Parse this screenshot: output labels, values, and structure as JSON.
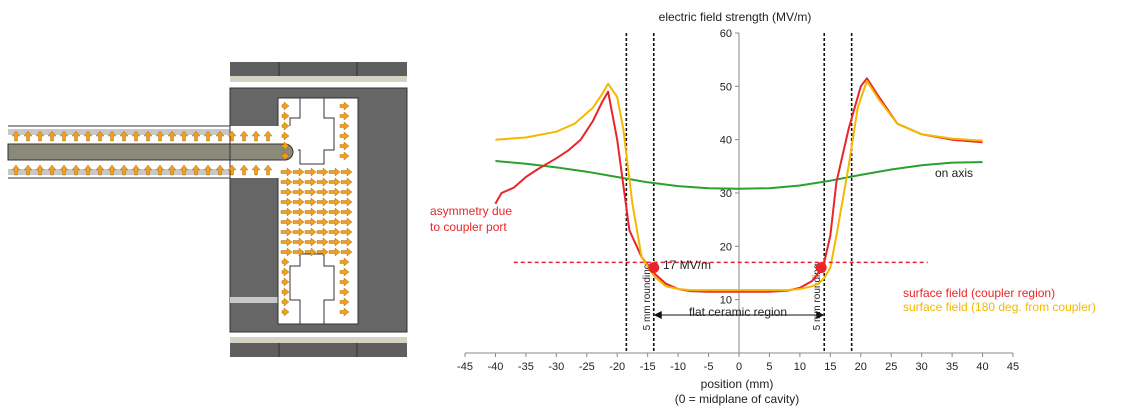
{
  "colors": {
    "red": "#e8262a",
    "orange": "#f5b800",
    "green": "#2ca02c",
    "structure_dark": "#606060",
    "structure_light": "#c8c8c8",
    "arrow_fill": "#f0a020"
  },
  "left_panel": {
    "description_icon": "coupler-cavity-field-arrows"
  },
  "chart_data": {
    "type": "line",
    "title": "electric field strength (MV/m)",
    "xlabel": "position (mm)",
    "xlabel2": "(0 = midplane of cavity)",
    "ylabel": "",
    "xlim": [
      -45,
      45
    ],
    "ylim": [
      0,
      60
    ],
    "xticks": [
      -45,
      -40,
      -35,
      -30,
      -25,
      -20,
      -15,
      -10,
      -5,
      0,
      5,
      10,
      15,
      20,
      25,
      30,
      35,
      40,
      45
    ],
    "yticks": [
      0,
      10,
      20,
      30,
      40,
      50,
      60
    ],
    "series": [
      {
        "name": "on axis",
        "color": "#2ca02c",
        "x": [
          -40,
          -35,
          -30,
          -25,
          -20,
          -15,
          -10,
          -5,
          0,
          5,
          10,
          15,
          20,
          25,
          30,
          35,
          40
        ],
        "y": [
          36.0,
          35.5,
          34.8,
          34.0,
          33.0,
          32.0,
          31.3,
          30.9,
          30.8,
          30.9,
          31.4,
          32.3,
          33.4,
          34.4,
          35.2,
          35.7,
          35.8
        ]
      },
      {
        "name": "surface field (coupler region)",
        "color": "#e8262a",
        "x": [
          -40,
          -39,
          -37,
          -35,
          -33,
          -30,
          -28,
          -26,
          -24,
          -22.5,
          -21.5,
          -20,
          -18,
          -16,
          -14,
          -13,
          -12,
          -10,
          -8,
          -5,
          0,
          5,
          8,
          10,
          12,
          13,
          14,
          15,
          16,
          18,
          20,
          21,
          23,
          26,
          30,
          35,
          40
        ],
        "y": [
          28.0,
          30.0,
          31.0,
          33.0,
          34.5,
          36.5,
          38.0,
          40.0,
          43.5,
          47.0,
          49.0,
          40.0,
          23.0,
          18.0,
          15.0,
          14.0,
          13.0,
          12.0,
          11.6,
          11.5,
          11.5,
          11.5,
          11.7,
          12.2,
          13.5,
          15.0,
          17.0,
          22.0,
          32.0,
          42.0,
          50.0,
          51.5,
          48.0,
          43.0,
          41.0,
          40.0,
          39.5
        ]
      },
      {
        "name": "surface field (180 deg. from coupler)",
        "color": "#f5b800",
        "x": [
          -40,
          -35,
          -30,
          -27,
          -24,
          -22.5,
          -21.5,
          -20,
          -19,
          -17.5,
          -16,
          -14,
          -13,
          -12,
          -10,
          -8,
          -5,
          0,
          5,
          8,
          10,
          12,
          13,
          14,
          15,
          16,
          18,
          19.5,
          21,
          23,
          26,
          30,
          35,
          40
        ],
        "y": [
          40.0,
          40.4,
          41.5,
          43.0,
          46.0,
          48.5,
          50.5,
          48.0,
          42.0,
          28.0,
          18.0,
          14.5,
          13.5,
          12.5,
          12.0,
          11.8,
          11.8,
          11.8,
          11.8,
          11.8,
          12.0,
          12.5,
          13.0,
          14.0,
          16.0,
          22.0,
          35.0,
          46.0,
          51.0,
          47.5,
          43.0,
          41.0,
          40.2,
          39.8
        ]
      }
    ],
    "reference_line": {
      "y": 17,
      "x_range": [
        -37,
        31
      ],
      "label": "17 MV/m",
      "color": "#e8262a"
    },
    "markers": [
      {
        "x": -14,
        "y": 16,
        "color": "#e8262a"
      },
      {
        "x": 13.5,
        "y": 16,
        "color": "#e8262a"
      }
    ],
    "vertical_lines": [
      {
        "x": -18.5,
        "label": ""
      },
      {
        "x": -14,
        "label": "5 mm rounding"
      },
      {
        "x": 14,
        "label": "5 mm rounding"
      },
      {
        "x": 18.5,
        "label": ""
      }
    ],
    "span_arrow": {
      "x_from": -14,
      "x_to": 14,
      "y": 9,
      "label": "flat ceramic region"
    },
    "annotations": [
      {
        "text_lines": [
          "asymmetry due",
          "to coupler port"
        ],
        "color": "#e8262a"
      },
      {
        "text_lines": [
          "on axis"
        ],
        "color": "#222222"
      }
    ],
    "legend": {
      "placement": "bottom-right",
      "entries": [
        {
          "label": "surface field (coupler region)",
          "color": "#e8262a"
        },
        {
          "label": "surface field (180 deg. from coupler)",
          "color": "#f5b800"
        }
      ]
    },
    "grid": false
  }
}
